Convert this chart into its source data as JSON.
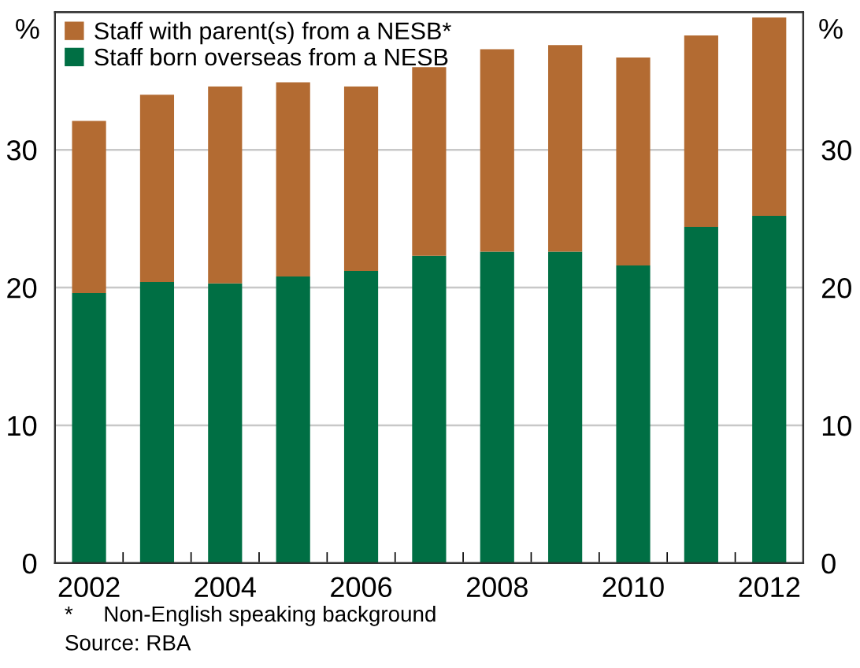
{
  "chart_data": {
    "type": "bar",
    "stacked": true,
    "categories": [
      "2002",
      null,
      "2004",
      null,
      "2006",
      null,
      "2008",
      null,
      "2010",
      null,
      "2012"
    ],
    "series": [
      {
        "name": "Staff born overseas from a NESB",
        "color": "#006f44",
        "values": [
          19.6,
          20.4,
          20.3,
          20.8,
          21.2,
          22.3,
          22.6,
          22.6,
          21.6,
          24.4,
          25.2
        ]
      },
      {
        "name": "Staff with parent(s) from a NESB*",
        "color": "#b36b32",
        "values": [
          12.5,
          13.6,
          14.3,
          14.1,
          13.4,
          13.7,
          14.7,
          15.0,
          15.1,
          13.9,
          14.4
        ]
      }
    ],
    "ylabel": "%",
    "y2label": "%",
    "ylim": [
      0,
      40
    ],
    "yticks": [
      0,
      10,
      20,
      30
    ],
    "y2lim": [
      0,
      40
    ],
    "y2ticks": [
      0,
      10,
      20,
      30
    ],
    "grid": "y",
    "legend": "top left",
    "annotations": [
      "*     Non-English speaking background",
      "Source: RBA"
    ]
  }
}
